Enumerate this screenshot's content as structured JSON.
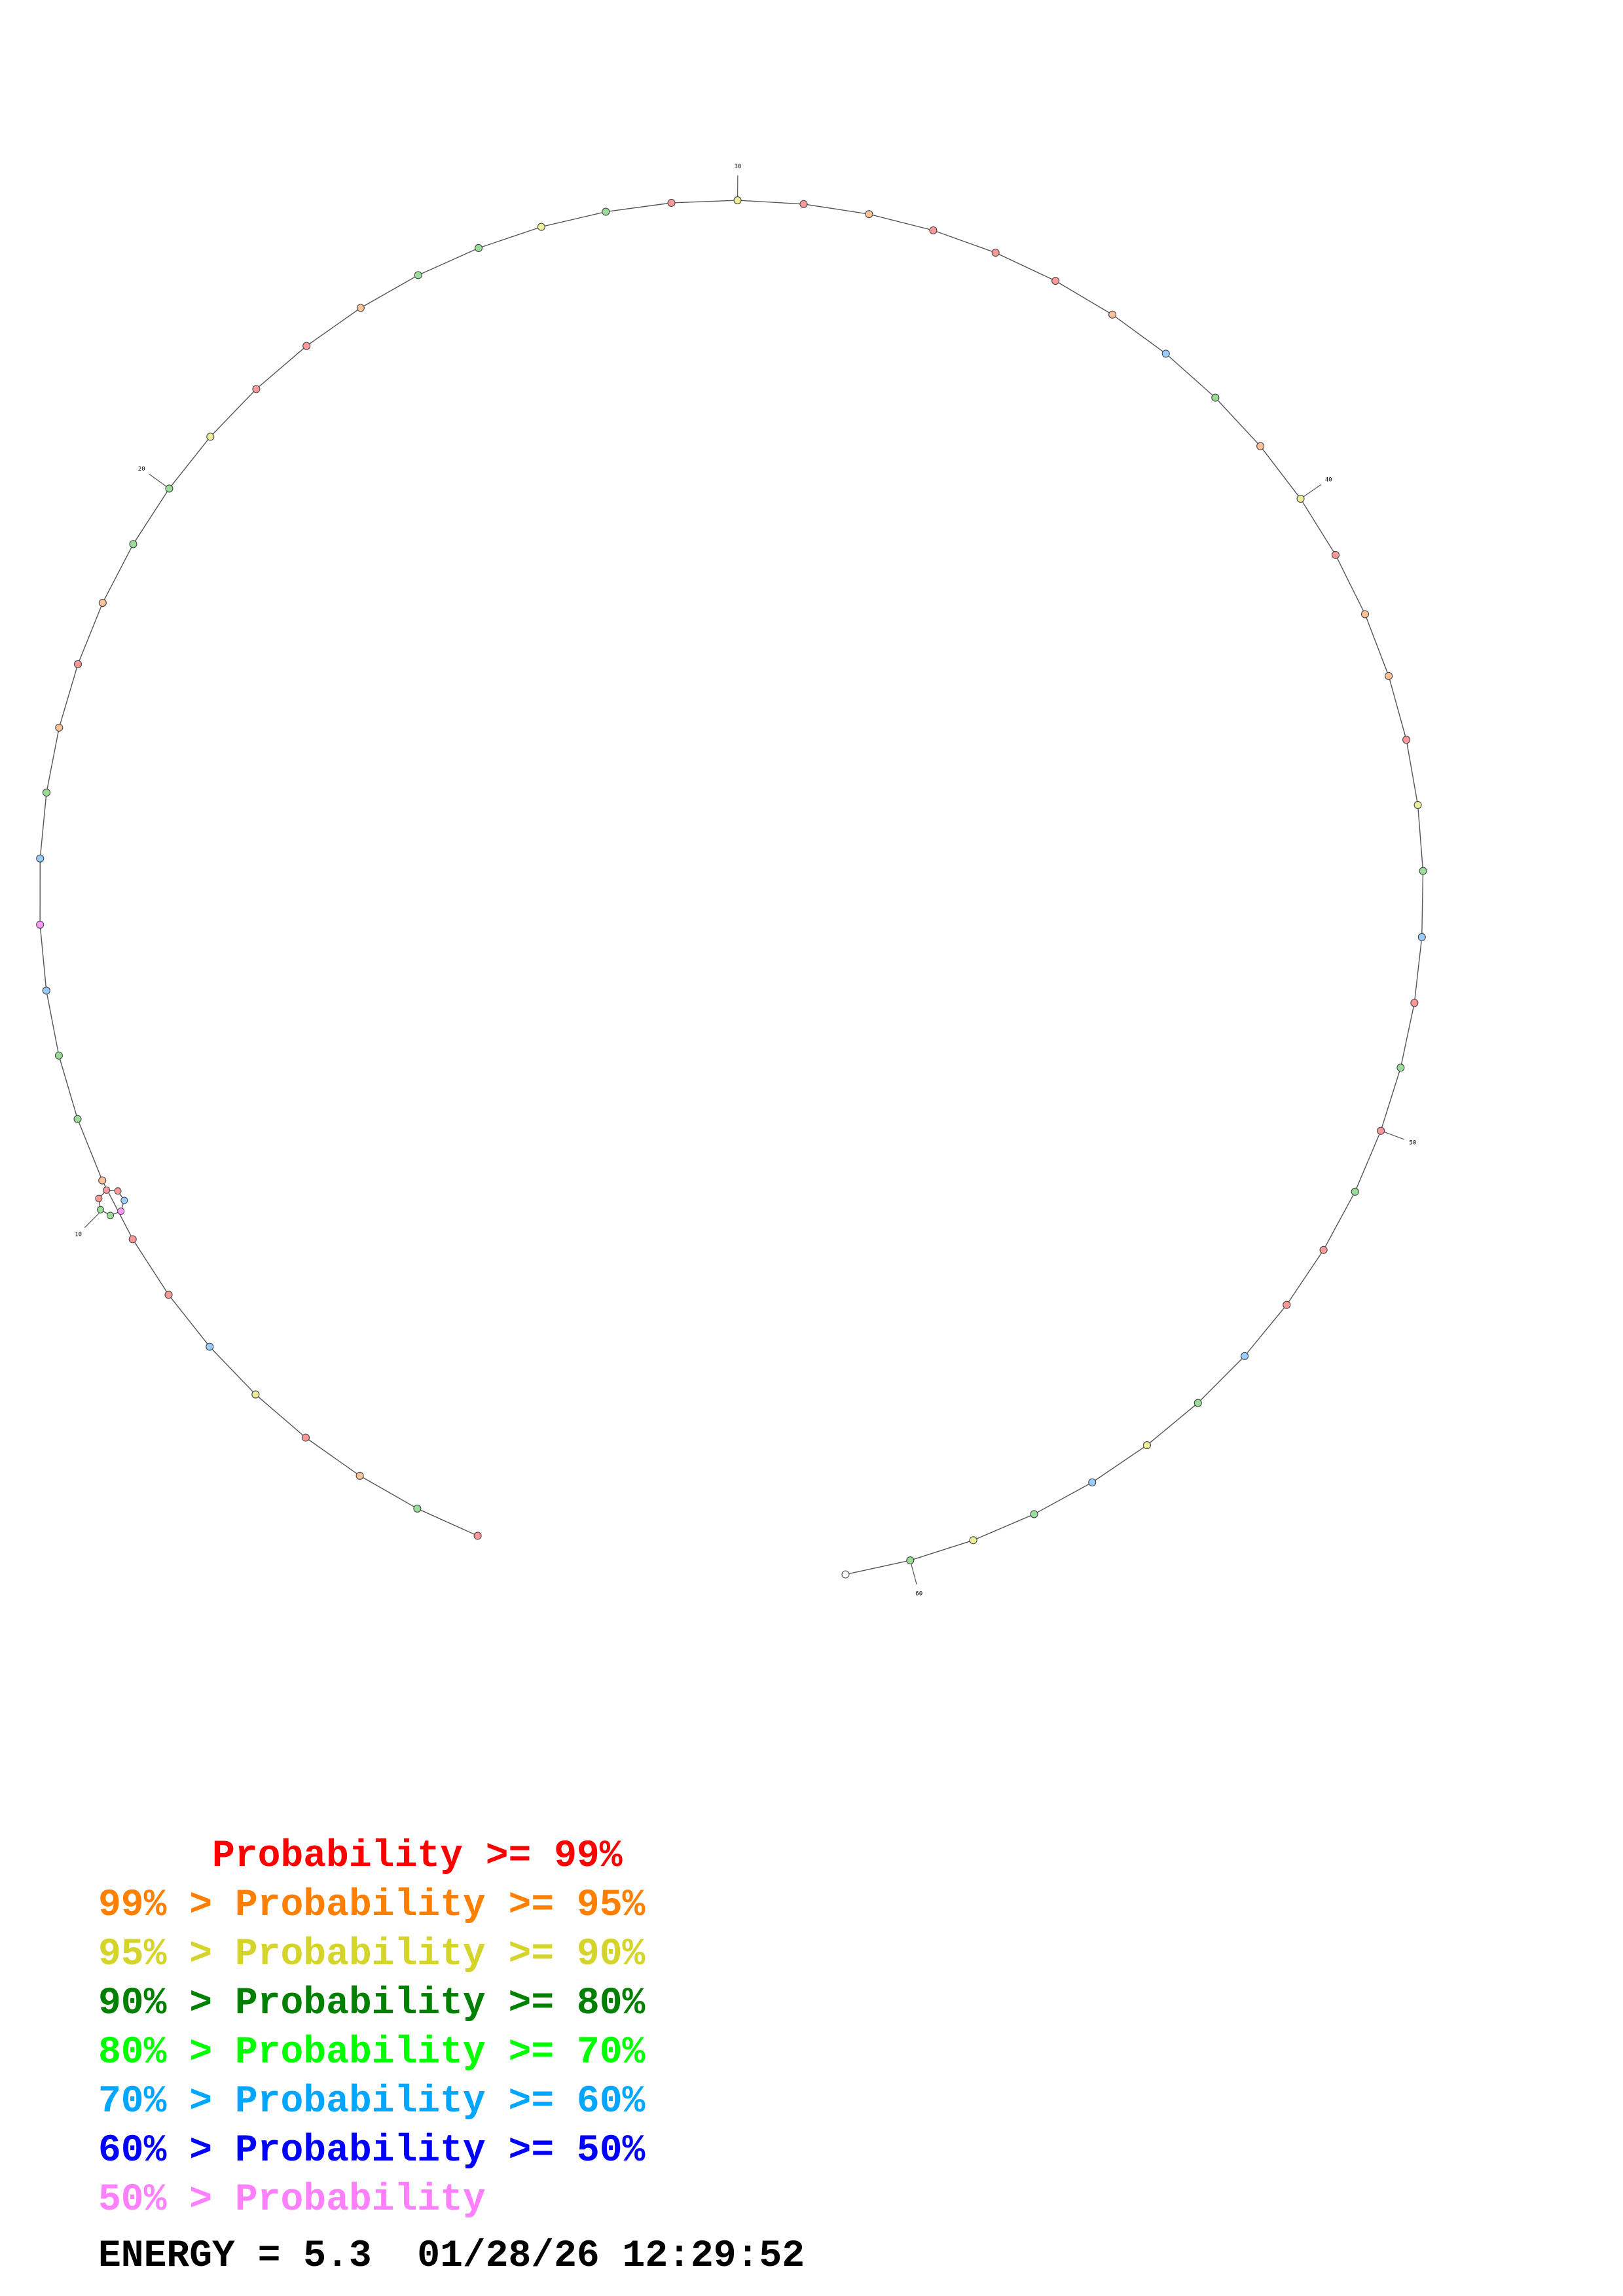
{
  "legend": [
    {
      "prefix": "     ",
      "text": "Probability >= 99%",
      "color": "#ff0000"
    },
    {
      "prefix": "99% > ",
      "text": "Probability >= 95%",
      "color": "#ff8000"
    },
    {
      "prefix": "95% > ",
      "text": "Probability >= 90%",
      "color": "#d4d42a"
    },
    {
      "prefix": "90% > ",
      "text": "Probability >= 80%",
      "color": "#008000"
    },
    {
      "prefix": "80% > ",
      "text": "Probability >= 70%",
      "color": "#00ff00"
    },
    {
      "prefix": "70% > ",
      "text": "Probability >= 60%",
      "color": "#00a6ff"
    },
    {
      "prefix": "60% > ",
      "text": "Probability >= 50%",
      "color": "#0000ff"
    },
    {
      "prefix": "50% > ",
      "text": "Probability",
      "color": "#ff80ff"
    }
  ],
  "energy": {
    "label": "ENERGY = 5.3",
    "timestamp": "01/28/26 12:29:52"
  },
  "structure": {
    "nucleotide_count": 61,
    "tick_labels": [
      "10",
      "20",
      "30",
      "40",
      "50",
      "60"
    ],
    "nucleotide_colors": [
      "#ff9999",
      "#99dd99",
      "#ffc299",
      "#ff9999",
      "#eeee99",
      "#99ccff",
      "#ff9999",
      "#ff9999",
      "#ffc299",
      "#99dd99",
      "#99dd99",
      "#99ccff",
      "#ff99ff",
      "#99ccff",
      "#99dd99",
      "#ffc299",
      "#ff9999",
      "#ffc299",
      "#99dd99",
      "#99dd99",
      "#eeee99",
      "#ff9999",
      "#ff9999",
      "#ffc299",
      "#99dd99",
      "#99dd99",
      "#eeee99",
      "#99dd99",
      "#ff9999",
      "#eeee99",
      "#ff9999",
      "#ffc299",
      "#ff9999",
      "#ff9999",
      "#ff9999",
      "#ffc299",
      "#99ccff",
      "#99dd99",
      "#ffc299",
      "#eeee99",
      "#ff9999",
      "#ffc299",
      "#ffc299",
      "#ff9999",
      "#eeee99",
      "#99dd99",
      "#99ccff",
      "#ff9999",
      "#99dd99",
      "#ff9999",
      "#99dd99",
      "#ff9999",
      "#ff9999",
      "#99ccff",
      "#99dd99",
      "#eeee99",
      "#99ccff",
      "#99dd99",
      "#eeee99",
      "#99dd99",
      "#ffffff"
    ]
  }
}
